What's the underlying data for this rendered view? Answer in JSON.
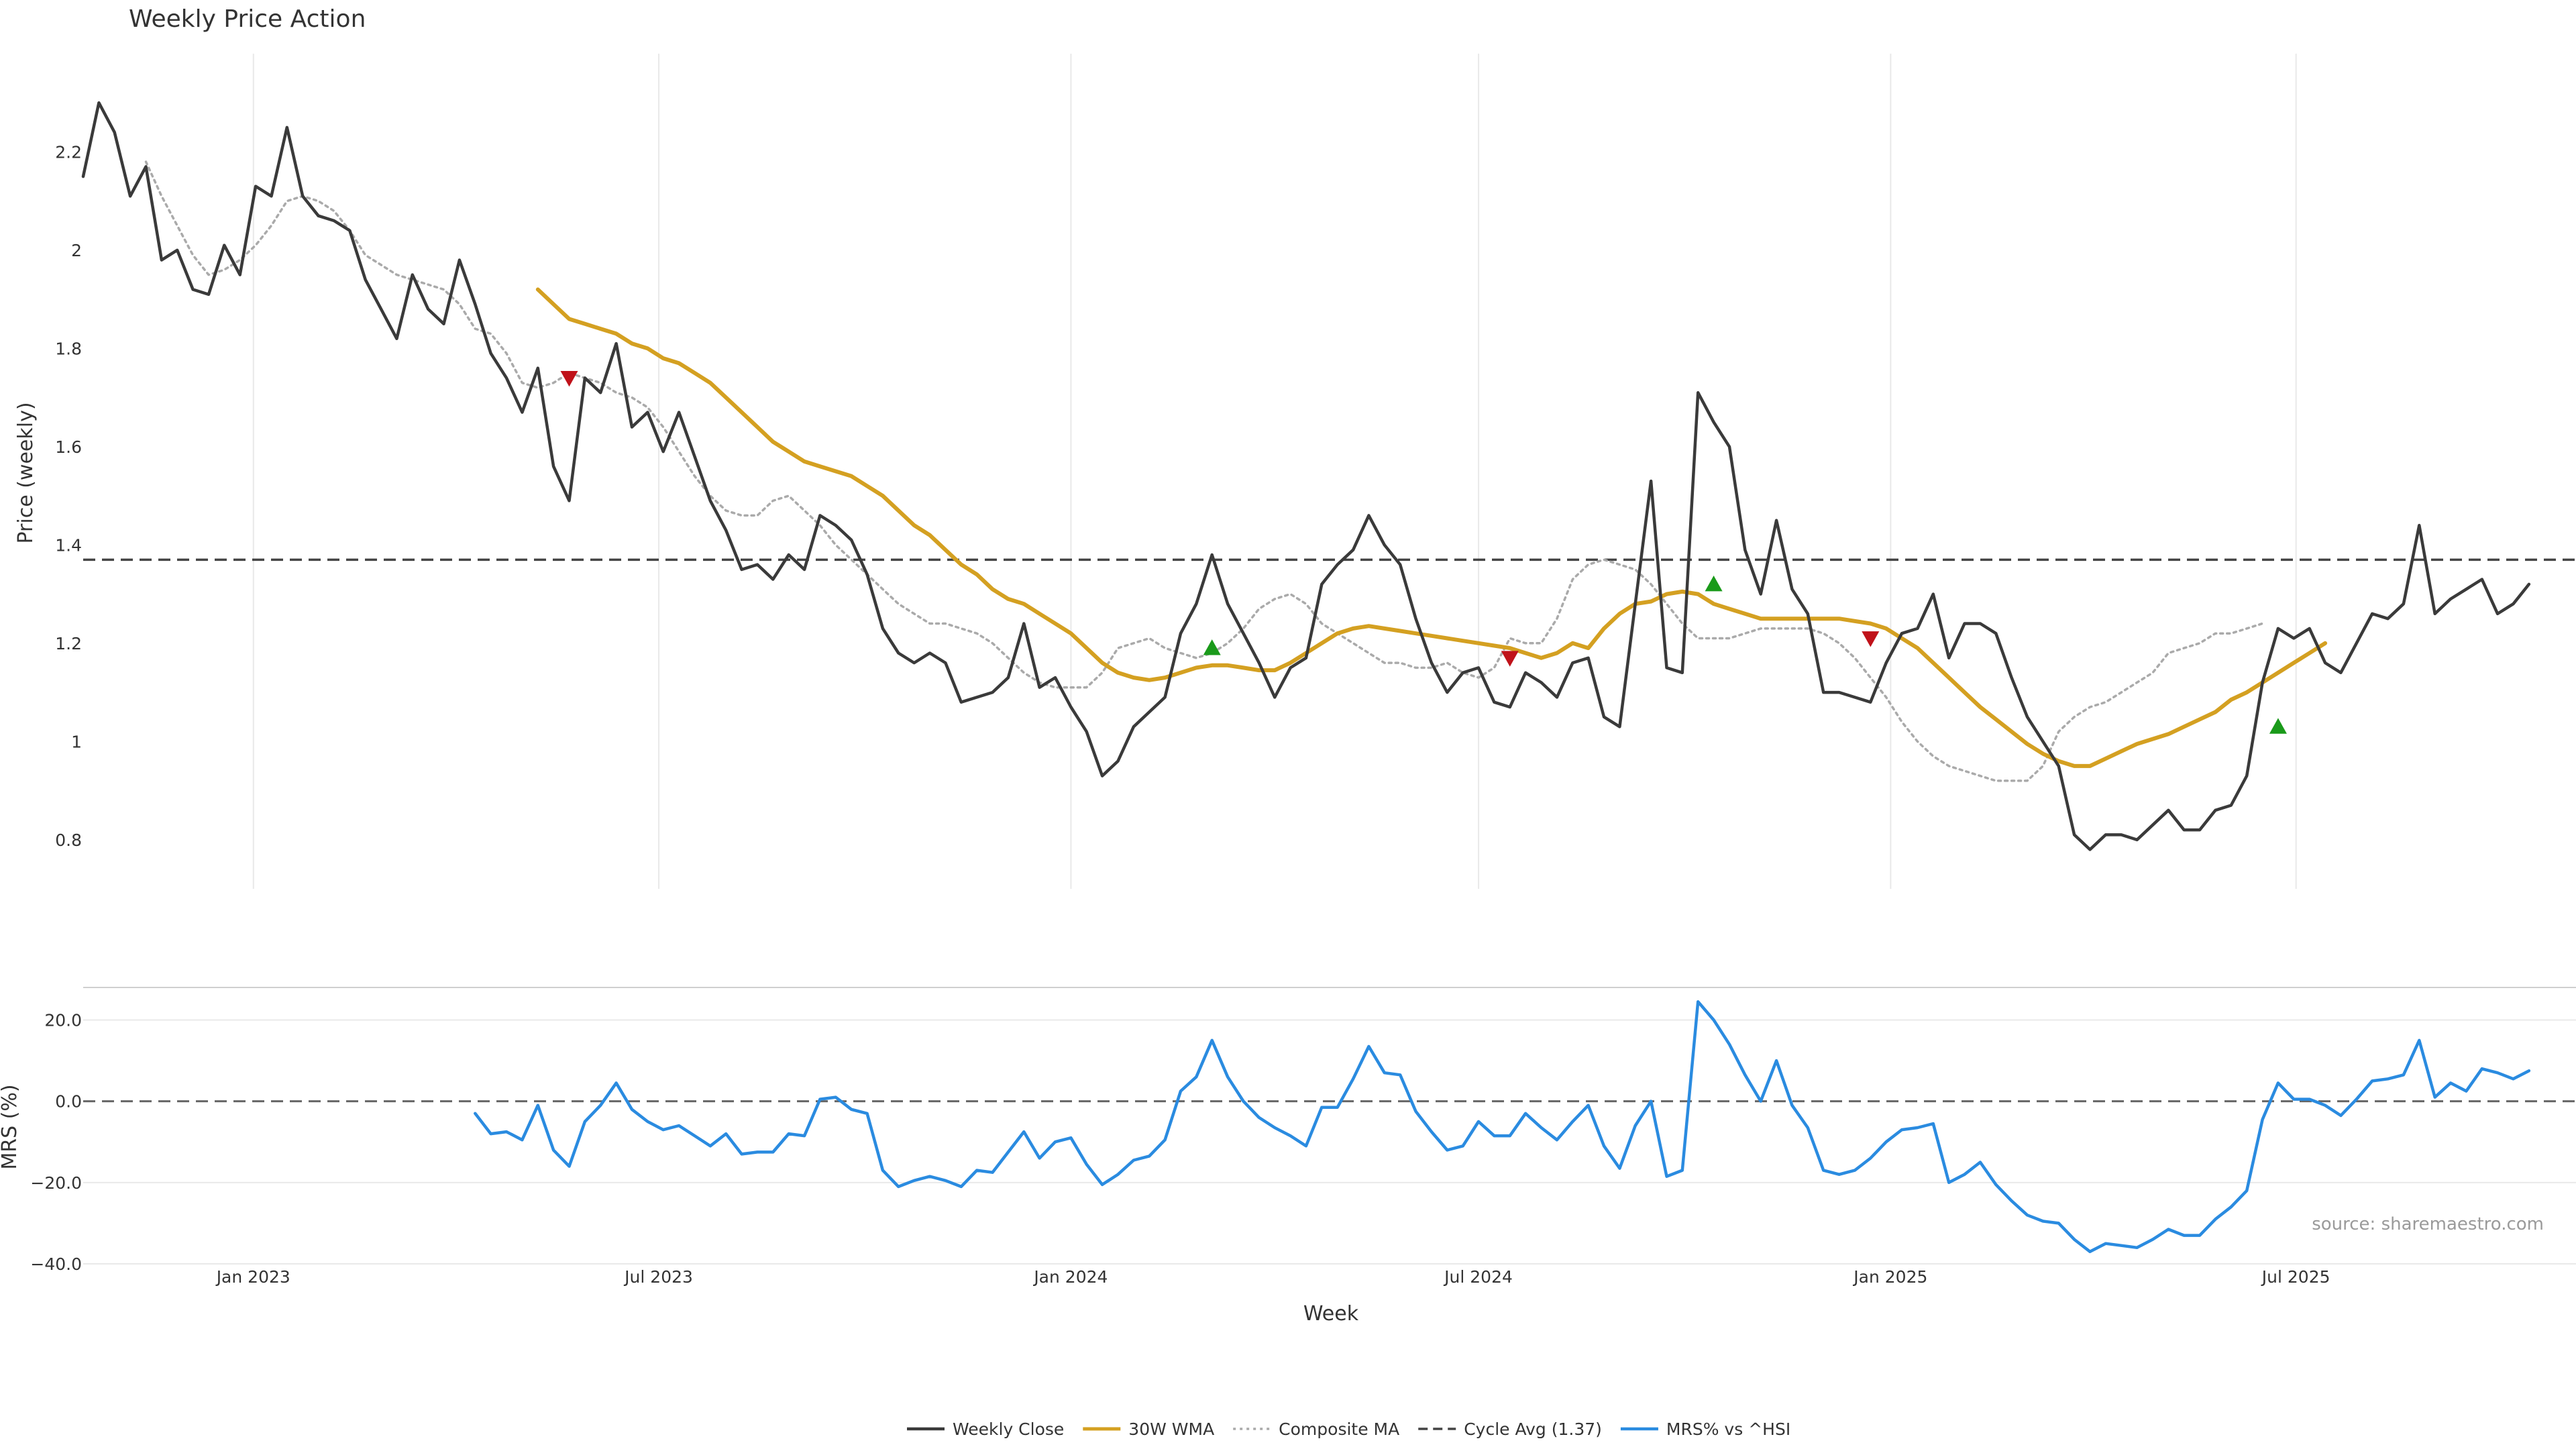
{
  "colors": {
    "close": "#3a3a3a",
    "wma": "#d4a021",
    "composite": "#aaaaaa",
    "cycle": "#444444",
    "mrs": "#2a8be0",
    "buy": "#1a9a1a",
    "sell": "#c0121a"
  },
  "chart_data": [
    {
      "type": "line",
      "title": "Weekly Price Action",
      "ylabel": "Price (weekly)",
      "xlabel": "Week",
      "ylim": [
        0.7,
        2.4
      ],
      "yticks": [
        0.8,
        1,
        1.2,
        1.4,
        1.6,
        1.8,
        2,
        2.2
      ],
      "ytick_labels": [
        "0.8",
        "1",
        "1.2",
        "1.4",
        "1.6",
        "1.8",
        "2",
        "2.2"
      ],
      "x_start": "2022-10-17",
      "xlim": [
        "2022-10-17",
        "2025-11-03"
      ],
      "x_ticks": [
        {
          "date": "2023-01-01",
          "label": "Jan 2023"
        },
        {
          "date": "2023-07-01",
          "label": "Jul 2023"
        },
        {
          "date": "2024-01-01",
          "label": "Jan 2024"
        },
        {
          "date": "2024-07-01",
          "label": "Jul 2024"
        },
        {
          "date": "2025-01-01",
          "label": "Jan 2025"
        },
        {
          "date": "2025-07-01",
          "label": "Jul 2025"
        }
      ],
      "grid": true,
      "series": [
        {
          "name": "Weekly Close",
          "key": "close",
          "style": "solid",
          "values": [
            2.15,
            2.3,
            2.24,
            2.11,
            2.17,
            1.98,
            2.0,
            1.92,
            1.91,
            2.01,
            1.95,
            2.13,
            2.11,
            2.25,
            2.11,
            2.07,
            2.06,
            2.04,
            1.94,
            1.88,
            1.82,
            1.95,
            1.88,
            1.85,
            1.98,
            1.89,
            1.79,
            1.74,
            1.67,
            1.76,
            1.56,
            1.49,
            1.74,
            1.71,
            1.81,
            1.64,
            1.67,
            1.59,
            1.67,
            1.58,
            1.49,
            1.43,
            1.35,
            1.36,
            1.33,
            1.38,
            1.35,
            1.46,
            1.44,
            1.41,
            1.34,
            1.23,
            1.18,
            1.16,
            1.18,
            1.16,
            1.08,
            1.09,
            1.1,
            1.13,
            1.24,
            1.11,
            1.13,
            1.07,
            1.02,
            0.93,
            0.96,
            1.03,
            1.06,
            1.09,
            1.22,
            1.28,
            1.38,
            1.28,
            1.22,
            1.16,
            1.09,
            1.15,
            1.17,
            1.32,
            1.36,
            1.39,
            1.46,
            1.4,
            1.36,
            1.25,
            1.16,
            1.1,
            1.14,
            1.15,
            1.08,
            1.07,
            1.14,
            1.12,
            1.09,
            1.16,
            1.17,
            1.05,
            1.03,
            1.28,
            1.53,
            1.15,
            1.14,
            1.71,
            1.65,
            1.6,
            1.39,
            1.3,
            1.45,
            1.31,
            1.26,
            1.1,
            1.1,
            1.09,
            1.08,
            1.16,
            1.22,
            1.23,
            1.3,
            1.17,
            1.24,
            1.24,
            1.22,
            1.13,
            1.05,
            1.0,
            0.95,
            0.81,
            0.78,
            0.81,
            0.81,
            0.8,
            0.83,
            0.86,
            0.82,
            0.82,
            0.86,
            0.87,
            0.93,
            1.12,
            1.23,
            1.21,
            1.23,
            1.16,
            1.14,
            1.2,
            1.26,
            1.25,
            1.28,
            1.44,
            1.26,
            1.29,
            1.31,
            1.33,
            1.26,
            1.28,
            1.32
          ]
        },
        {
          "name": "30W WMA",
          "key": "wma",
          "style": "solid",
          "start_index": 29,
          "values": [
            1.92,
            1.89,
            1.86,
            1.85,
            1.84,
            1.83,
            1.81,
            1.8,
            1.78,
            1.77,
            1.75,
            1.73,
            1.7,
            1.67,
            1.64,
            1.61,
            1.59,
            1.57,
            1.56,
            1.55,
            1.54,
            1.52,
            1.5,
            1.47,
            1.44,
            1.42,
            1.39,
            1.36,
            1.34,
            1.31,
            1.29,
            1.28,
            1.26,
            1.24,
            1.22,
            1.19,
            1.16,
            1.14,
            1.13,
            1.125,
            1.13,
            1.14,
            1.15,
            1.155,
            1.155,
            1.15,
            1.145,
            1.145,
            1.16,
            1.18,
            1.2,
            1.22,
            1.23,
            1.235,
            1.23,
            1.225,
            1.22,
            1.215,
            1.21,
            1.205,
            1.2,
            1.195,
            1.19,
            1.18,
            1.17,
            1.18,
            1.2,
            1.19,
            1.23,
            1.26,
            1.28,
            1.285,
            1.3,
            1.305,
            1.3,
            1.28,
            1.27,
            1.26,
            1.25,
            1.25,
            1.25,
            1.25,
            1.25,
            1.25,
            1.245,
            1.24,
            1.23,
            1.21,
            1.19,
            1.16,
            1.13,
            1.1,
            1.07,
            1.045,
            1.02,
            0.995,
            0.975,
            0.96,
            0.95,
            0.95,
            0.965,
            0.98,
            0.995,
            1.005,
            1.015,
            1.03,
            1.045,
            1.06,
            1.085,
            1.1,
            1.12,
            1.14,
            1.16,
            1.18,
            1.2
          ]
        },
        {
          "name": "Composite MA",
          "key": "composite",
          "style": "dotted",
          "start_index": 4,
          "values": [
            2.18,
            2.11,
            2.05,
            1.99,
            1.95,
            1.96,
            1.98,
            2.01,
            2.05,
            2.1,
            2.11,
            2.1,
            2.08,
            2.04,
            1.99,
            1.97,
            1.95,
            1.94,
            1.93,
            1.92,
            1.89,
            1.84,
            1.83,
            1.79,
            1.73,
            1.72,
            1.73,
            1.75,
            1.74,
            1.73,
            1.71,
            1.7,
            1.68,
            1.64,
            1.59,
            1.54,
            1.5,
            1.47,
            1.46,
            1.46,
            1.49,
            1.5,
            1.47,
            1.44,
            1.4,
            1.37,
            1.34,
            1.31,
            1.28,
            1.26,
            1.24,
            1.24,
            1.23,
            1.22,
            1.2,
            1.17,
            1.14,
            1.12,
            1.11,
            1.11,
            1.11,
            1.14,
            1.19,
            1.2,
            1.21,
            1.19,
            1.18,
            1.17,
            1.18,
            1.2,
            1.23,
            1.27,
            1.29,
            1.3,
            1.28,
            1.24,
            1.22,
            1.2,
            1.18,
            1.16,
            1.16,
            1.15,
            1.15,
            1.16,
            1.14,
            1.13,
            1.15,
            1.21,
            1.2,
            1.2,
            1.25,
            1.33,
            1.36,
            1.37,
            1.36,
            1.35,
            1.32,
            1.28,
            1.24,
            1.21,
            1.21,
            1.21,
            1.22,
            1.23,
            1.23,
            1.23,
            1.23,
            1.22,
            1.2,
            1.17,
            1.13,
            1.09,
            1.04,
            1.0,
            0.97,
            0.95,
            0.94,
            0.93,
            0.92,
            0.92,
            0.92,
            0.95,
            1.02,
            1.05,
            1.07,
            1.08,
            1.1,
            1.12,
            1.14,
            1.18,
            1.19,
            1.2,
            1.22,
            1.22,
            1.23,
            1.24
          ]
        },
        {
          "name": "Cycle Avg (1.37)",
          "key": "cycle",
          "style": "dashed",
          "constant": 1.37
        }
      ],
      "markers": [
        {
          "kind": "sell",
          "index": 31,
          "value": 1.74
        },
        {
          "kind": "buy",
          "index": 72,
          "value": 1.19
        },
        {
          "kind": "sell",
          "index": 91,
          "value": 1.17
        },
        {
          "kind": "buy",
          "index": 104,
          "value": 1.32
        },
        {
          "kind": "sell",
          "index": 114,
          "value": 1.21
        },
        {
          "kind": "buy",
          "index": 140,
          "value": 1.03
        }
      ],
      "annotations": [
        {
          "text": "source: sharemaestro.com"
        }
      ]
    },
    {
      "type": "line",
      "ylabel": "MRS (%)",
      "ylim": [
        -40,
        28
      ],
      "yticks": [
        -40,
        -20,
        0,
        20
      ],
      "ytick_labels": [
        "−40.0",
        "−20.0",
        "0.0",
        "20.0"
      ],
      "zero_line": true,
      "series": [
        {
          "name": "MRS% vs ^HSI",
          "key": "mrs",
          "style": "solid",
          "start_index": 25,
          "values": [
            -3,
            -8,
            -7.5,
            -9.5,
            -1,
            -12,
            -16,
            -5,
            -1,
            4.5,
            -2,
            -5,
            -7,
            -6,
            -8.5,
            -11,
            -8,
            -13,
            -12.5,
            -12.5,
            -8,
            -8.5,
            0.5,
            1,
            -2,
            -3,
            -17,
            -21,
            -19.5,
            -18.5,
            -19.5,
            -21,
            -17,
            -17.5,
            -12.5,
            -7.5,
            -14,
            -10,
            -9,
            -15.5,
            -20.5,
            -18,
            -14.5,
            -13.5,
            -9.5,
            2.5,
            6,
            15,
            6,
            0,
            -4,
            -6.5,
            -8.5,
            -11,
            -1.5,
            -1.5,
            5.5,
            13.5,
            7,
            6.5,
            -2.5,
            -7.5,
            -12,
            -11,
            -5,
            -8.5,
            -8.5,
            -3,
            -6.5,
            -9.5,
            -5,
            -1,
            -11,
            -16.5,
            -6,
            0,
            -18.5,
            -17,
            24.5,
            20,
            14,
            6.5,
            0,
            10,
            -1,
            -6.5,
            -17,
            -18,
            -17,
            -14,
            -10,
            -7,
            -6.5,
            -5.5,
            -20,
            -18,
            -15,
            -20.5,
            -24.5,
            -28,
            -29.5,
            -30,
            -34,
            -37,
            -35,
            -35.5,
            -36,
            -34,
            -31.5,
            -33,
            -33,
            -29,
            -26,
            -22,
            -4.5,
            4.5,
            0.5,
            0.5,
            -1,
            -3.5,
            0.5,
            5,
            5.5,
            6.5,
            15,
            1,
            4.5,
            2.5,
            8,
            7,
            5.5,
            7.5
          ]
        }
      ]
    }
  ]
}
